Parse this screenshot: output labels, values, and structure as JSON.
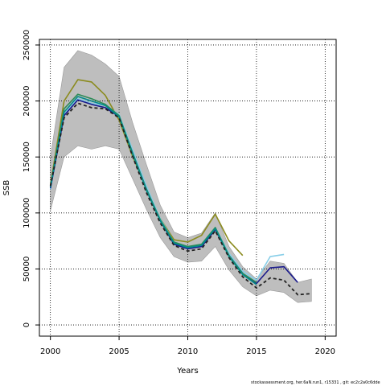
{
  "chart_data": {
    "type": "line",
    "title": "",
    "xlabel": "Years",
    "ylabel": "SSB",
    "xlim": [
      1999.2,
      2020.8
    ],
    "ylim": [
      -10000,
      255000
    ],
    "x_ticks": [
      2000,
      2005,
      2010,
      2015,
      2020
    ],
    "y_ticks": [
      0,
      50000,
      100000,
      150000,
      200000,
      250000
    ],
    "grid": true,
    "legend": "none",
    "band": {
      "color": "#bebebe",
      "x": [
        2000,
        2001,
        2002,
        2003,
        2004,
        2005,
        2006,
        2007,
        2008,
        2009,
        2010,
        2011,
        2012,
        2013,
        2014,
        2015,
        2016,
        2017,
        2018,
        2019
      ],
      "upper": [
        150000,
        230000,
        245000,
        241000,
        233000,
        222000,
        180000,
        143000,
        107000,
        83000,
        78000,
        82000,
        100000,
        70000,
        52000,
        41000,
        57000,
        55000,
        38000,
        41000
      ],
      "lower": [
        102000,
        150000,
        160000,
        157000,
        160000,
        157000,
        130000,
        103000,
        78000,
        61000,
        56000,
        57000,
        70000,
        49000,
        34000,
        26000,
        31000,
        29000,
        20000,
        21000
      ]
    },
    "series": [
      {
        "color": "#8b8b1e",
        "width": 1.6,
        "dash": "",
        "x": [
          2000,
          2001,
          2002,
          2003,
          2004,
          2005,
          2006,
          2007,
          2008,
          2009,
          2010,
          2011,
          2012,
          2013,
          2014
        ],
        "values": [
          125000,
          200000,
          219000,
          217000,
          205000,
          183000,
          150000,
          122000,
          95000,
          76000,
          74000,
          80000,
          99000,
          75000,
          62000
        ]
      },
      {
        "color": "#87cee8",
        "width": 1.6,
        "dash": "",
        "x": [
          2000,
          2001,
          2002,
          2003,
          2004,
          2005,
          2006,
          2007,
          2008,
          2009,
          2010,
          2011,
          2012,
          2013,
          2014,
          2015,
          2016,
          2017
        ],
        "values": [
          121000,
          188000,
          202000,
          198000,
          196000,
          188000,
          156000,
          124000,
          95000,
          74000,
          70000,
          72000,
          87000,
          64000,
          48000,
          40000,
          61000,
          63000
        ]
      },
      {
        "color": "#1a1a8c",
        "width": 1.6,
        "dash": "",
        "x": [
          2000,
          2001,
          2002,
          2003,
          2004,
          2005,
          2006,
          2007,
          2008,
          2009,
          2010,
          2011,
          2012,
          2013,
          2014,
          2015,
          2016,
          2017,
          2018
        ],
        "values": [
          122000,
          187000,
          201000,
          197000,
          194000,
          186000,
          153000,
          121000,
          93000,
          72000,
          68000,
          70000,
          85000,
          62000,
          46000,
          37000,
          51000,
          52000,
          38000
        ]
      },
      {
        "color": "#2e8b57",
        "width": 1.6,
        "dash": "",
        "x": [
          2000,
          2001,
          2002,
          2003,
          2004,
          2005,
          2006,
          2007,
          2008,
          2009,
          2010,
          2011,
          2012,
          2013,
          2014,
          2015
        ],
        "values": [
          124000,
          193000,
          206000,
          202000,
          197000,
          187000,
          153000,
          121000,
          94000,
          74000,
          70000,
          72000,
          87000,
          62000,
          46000,
          38000
        ]
      },
      {
        "color": "#008b8b",
        "width": 1.6,
        "dash": "",
        "x": [
          2000,
          2001,
          2002,
          2003,
          2004,
          2005,
          2006,
          2007,
          2008,
          2009,
          2010,
          2011,
          2012,
          2013,
          2014,
          2015
        ],
        "values": [
          123000,
          190000,
          204000,
          200000,
          196000,
          186000,
          152000,
          120000,
          93000,
          73000,
          69000,
          71000,
          86000,
          61000,
          45000,
          36000
        ]
      },
      {
        "color": "#222222",
        "width": 1.8,
        "dash": "4,3",
        "x": [
          2000,
          2001,
          2002,
          2003,
          2004,
          2005,
          2006,
          2007,
          2008,
          2009,
          2010,
          2011,
          2012,
          2013,
          2014,
          2015,
          2016,
          2017,
          2018,
          2019
        ],
        "values": [
          124000,
          185000,
          198000,
          194000,
          193000,
          185000,
          150000,
          118000,
          91000,
          71000,
          66000,
          68000,
          84000,
          60000,
          43000,
          33000,
          42000,
          40000,
          27000,
          28000
        ]
      }
    ]
  },
  "footer": {
    "credit": "stockassessment.org, her.6aN.run1, r15331 , git: ec2c2a0c6dde"
  }
}
